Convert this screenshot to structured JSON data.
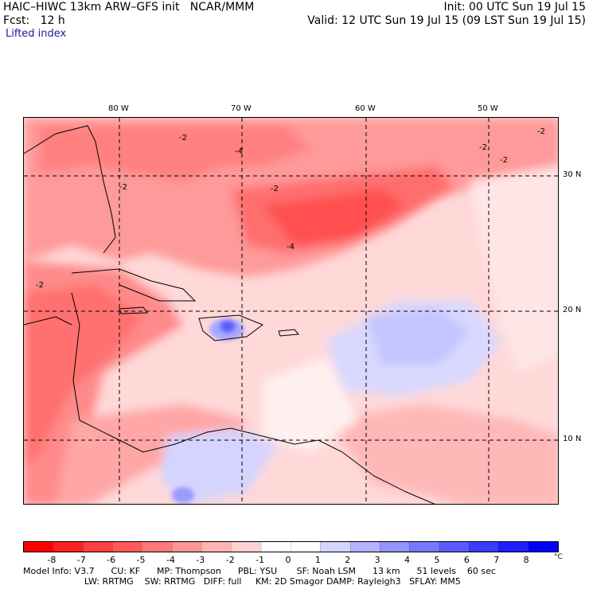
{
  "header": {
    "line1_left": "HAIC–HIWC 13km ARW–GFS init   NCAR/MMM",
    "line1_right": "Init: 00 UTC Sun 19 Jul 15",
    "line2_left": "Fcst:   12 h",
    "line2_right": "Valid: 12 UTC Sun 19 Jul 15 (09 LST Sun 19 Jul 15)",
    "field": "Lifted index"
  },
  "axes": {
    "lon_labels": [
      "80 W",
      "70 W",
      "60 W",
      "50 W"
    ],
    "lat_labels": [
      "30 N",
      "20 N",
      "10 N"
    ]
  },
  "colorbar": {
    "unit": "°C",
    "labels": [
      "-8",
      "-7",
      "-6",
      "-5",
      "-4",
      "-3",
      "-2",
      "-1",
      "0",
      "1",
      "2",
      "3",
      "4",
      "5",
      "6",
      "7",
      "8"
    ],
    "colors": [
      "#ff0000",
      "#ff2020",
      "#ff4040",
      "#ff5a5a",
      "#ff7878",
      "#ff9494",
      "#ffb4b4",
      "#ffd2d2",
      "#ffffff",
      "#ffffff",
      "#d4d4ff",
      "#b4b4ff",
      "#9494ff",
      "#7878ff",
      "#5a5aff",
      "#3c3cff",
      "#1e1eff",
      "#0000ff"
    ]
  },
  "model_info": {
    "line1": "Model Info: V3.7      CU: KF      MP: Thompson      PBL: YSU       SF: Noah LSM      13 km      51 levels    60 sec",
    "line2": "                      LW: RRTMG    SW: RRTMG   DIFF: full     KM: 2D Smagor DAMP: Rayleigh3   SFLAY: MM5"
  },
  "contour_labels": [
    "-2",
    "-2",
    "-2",
    "-2",
    "-4",
    "-2",
    "-2",
    "-2",
    "-4"
  ]
}
